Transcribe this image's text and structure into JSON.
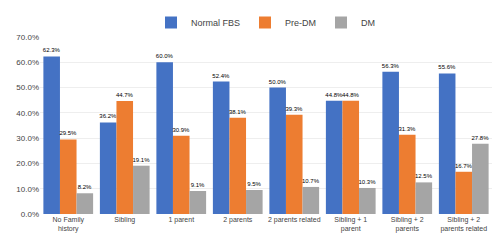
{
  "chart_data": {
    "type": "bar",
    "categories": [
      "No Family\nhistory",
      "Sibling",
      "1 parent",
      "2 parents",
      "2 parents related",
      "Sibling + 1\nparent",
      "Sibling + 2\nparents",
      "Sibling + 2\nparents related"
    ],
    "series": [
      {
        "name": "Normal FBS",
        "color": "#4472C4",
        "values": [
          62.3,
          36.2,
          60.0,
          52.4,
          50.0,
          44.8,
          56.3,
          55.6
        ],
        "value_labels": [
          "62.3%",
          "36.2%",
          "60.0%",
          "52.4%",
          "50.0%",
          "44.8%",
          "56.3%",
          "55.6%"
        ]
      },
      {
        "name": "Pre-DM",
        "color": "#ED7D31",
        "values": [
          29.5,
          44.7,
          30.9,
          38.1,
          39.3,
          44.8,
          31.3,
          16.7
        ],
        "value_labels": [
          "29.5%",
          "44.7%",
          "30.9%",
          "38.1%",
          "39.3%",
          "44.8%",
          "31.3%",
          "16.7%"
        ]
      },
      {
        "name": "DM",
        "color": "#A5A5A5",
        "values": [
          8.2,
          19.1,
          9.1,
          9.5,
          10.7,
          10.3,
          12.5,
          27.8
        ],
        "value_labels": [
          "8.2%",
          "19.1%",
          "9.1%",
          "9.5%",
          "10.7%",
          "10.3%",
          "12.5%",
          "27.8%"
        ]
      }
    ],
    "ylim": [
      0,
      70
    ],
    "yticks": [
      {
        "value": 0,
        "label": "0.0%"
      },
      {
        "value": 10,
        "label": "10.0%"
      },
      {
        "value": 20,
        "label": "20.0%"
      },
      {
        "value": 30,
        "label": "30.0%"
      },
      {
        "value": 40,
        "label": "40.0%"
      },
      {
        "value": 50,
        "label": "50.0%"
      },
      {
        "value": 60,
        "label": "60.0%"
      },
      {
        "value": 70,
        "label": "70.0%"
      }
    ],
    "grid": true,
    "legend": "top",
    "data_labels": true
  }
}
